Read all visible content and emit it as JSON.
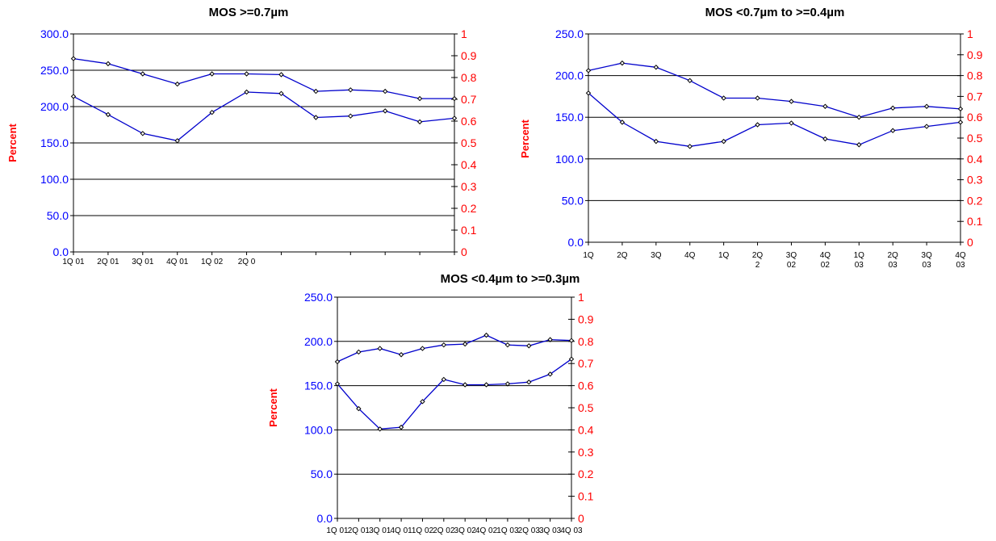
{
  "colors": {
    "series": "#0000cc",
    "left_axis": "#0000ff",
    "right_axis": "#ff0000",
    "ylabel": "#ff0000",
    "grid": "#000000"
  },
  "chart_data": [
    {
      "type": "line",
      "title": "MOS >=0.7µm",
      "ylabel": "Percent",
      "ylim": [
        0,
        300
      ],
      "y_ticks": [
        "0.0",
        "50.0",
        "100.0",
        "150.0",
        "200.0",
        "250.0",
        "300.0"
      ],
      "right_ticks": [
        "0",
        "0.1",
        "0.2",
        "0.3",
        "0.4",
        "0.5",
        "0.6",
        "0.7",
        "0.8",
        "0.9",
        "1"
      ],
      "categories": [
        "1Q 01",
        "2Q 01",
        "3Q 01",
        "4Q 01",
        "1Q 02",
        "2Q 0",
        "",
        "",
        "",
        "",
        "",
        ""
      ],
      "series": [
        {
          "values": [
            266,
            259,
            245,
            231,
            245,
            245,
            244,
            221,
            223,
            221,
            211,
            211
          ]
        },
        {
          "values": [
            214,
            189,
            163,
            153,
            192,
            220,
            218,
            185,
            187,
            194,
            179,
            184
          ]
        }
      ]
    },
    {
      "type": "line",
      "title": "MOS <0.7µm to >=0.4µm",
      "ylabel": "Percent",
      "ylim": [
        0,
        250
      ],
      "y_ticks": [
        "0.0",
        "50.0",
        "100.0",
        "150.0",
        "200.0",
        "250.0"
      ],
      "right_ticks": [
        "0",
        "0.1",
        "0.2",
        "0.3",
        "0.4",
        "0.5",
        "0.6",
        "0.7",
        "0.8",
        "0.9",
        "1"
      ],
      "categories": [
        [
          "1Q",
          ""
        ],
        [
          "2Q",
          ""
        ],
        [
          "3Q",
          ""
        ],
        [
          "4Q",
          ""
        ],
        [
          "1Q",
          ""
        ],
        [
          "2Q",
          "2"
        ],
        [
          "3Q",
          "02"
        ],
        [
          "4Q",
          "02"
        ],
        [
          "1Q",
          "03"
        ],
        [
          "2Q",
          "03"
        ],
        [
          "3Q",
          "03"
        ],
        [
          "4Q",
          "03"
        ]
      ],
      "series": [
        {
          "values": [
            206,
            215,
            210,
            194,
            173,
            173,
            169,
            163,
            150,
            161,
            163,
            160
          ]
        },
        {
          "values": [
            179,
            144,
            121,
            115,
            121,
            141,
            143,
            124,
            117,
            134,
            139,
            144
          ]
        }
      ]
    },
    {
      "type": "line",
      "title": "MOS <0.4µm to >=0.3µm",
      "ylabel": "Percent",
      "ylim": [
        0,
        250
      ],
      "y_ticks": [
        "0.0",
        "50.0",
        "100.0",
        "150.0",
        "200.0",
        "250.0"
      ],
      "right_ticks": [
        "0",
        "0.1",
        "0.2",
        "0.3",
        "0.4",
        "0.5",
        "0.6",
        "0.7",
        "0.8",
        "0.9",
        "1"
      ],
      "categories": [
        "1Q 01",
        "2Q 01",
        "3Q 01",
        "4Q 01",
        "1Q 02",
        "2Q 02",
        "3Q 02",
        "4Q 02",
        "1Q 03",
        "2Q 03",
        "3Q 03",
        "4Q 03"
      ],
      "series": [
        {
          "values": [
            177,
            188,
            192,
            185,
            192,
            196,
            197,
            207,
            196,
            195,
            202,
            201
          ]
        },
        {
          "values": [
            152,
            124,
            101,
            103,
            132,
            157,
            151,
            151,
            152,
            154,
            163,
            180
          ]
        }
      ]
    }
  ]
}
